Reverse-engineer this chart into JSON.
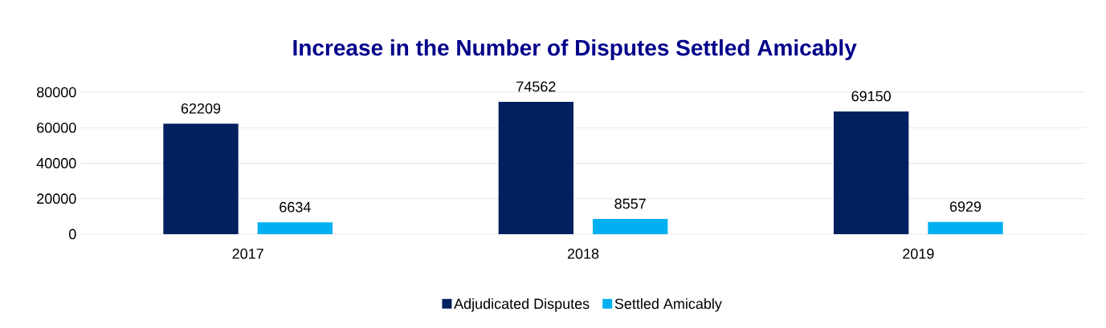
{
  "chart_data": {
    "type": "bar",
    "title": "Increase in the Number of Disputes Settled Amicably",
    "categories": [
      "2017",
      "2018",
      "2019"
    ],
    "series": [
      {
        "name": "Adjudicated Disputes",
        "color": "#002060",
        "values": [
          62209,
          74562,
          69150
        ]
      },
      {
        "name": "Settled Amicably",
        "color": "#00b0f0",
        "values": [
          6634,
          8557,
          6929
        ]
      }
    ],
    "ylim": [
      0,
      80000
    ],
    "yticks": [
      0,
      20000,
      40000,
      60000,
      80000
    ],
    "grid": "y",
    "legend": "bottom",
    "data_labels": true
  }
}
